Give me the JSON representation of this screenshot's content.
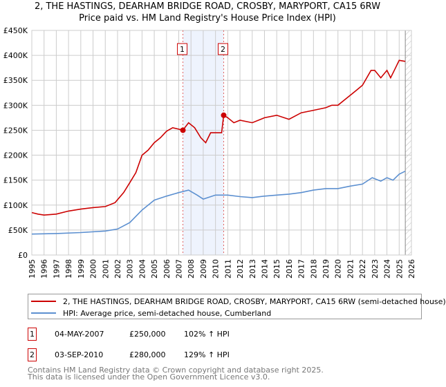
{
  "title_line1": "2, THE HASTINGS, DEARHAM BRIDGE ROAD, CROSBY, MARYPORT, CA15 6RW",
  "title_line2": "Price paid vs. HM Land Registry's House Price Index (HPI)",
  "legend": [
    {
      "label": "2, THE HASTINGS, DEARHAM BRIDGE ROAD, CROSBY, MARYPORT, CA15 6RW (semi-detached house)",
      "color": "#cc0000"
    },
    {
      "label": "HPI: Average price, semi-detached house, Cumberland",
      "color": "#5b8fd0"
    }
  ],
  "sales": [
    {
      "num": "1",
      "date": "04-MAY-2007",
      "price": "£250,000",
      "hpi": "102% ↑ HPI"
    },
    {
      "num": "2",
      "date": "03-SEP-2010",
      "price": "£280,000",
      "hpi": "129% ↑ HPI"
    }
  ],
  "footer_line1": "Contains HM Land Registry data © Crown copyright and database right 2025.",
  "footer_line2": "This data is licensed under the Open Government Licence v3.0.",
  "chart_data": {
    "type": "line",
    "xlim": [
      1995,
      2026
    ],
    "ylim": [
      0,
      450000
    ],
    "yticks": [
      0,
      50000,
      100000,
      150000,
      200000,
      250000,
      300000,
      350000,
      400000,
      450000
    ],
    "ytick_labels": [
      "£0",
      "£50K",
      "£100K",
      "£150K",
      "£200K",
      "£250K",
      "£300K",
      "£350K",
      "£400K",
      "£450K"
    ],
    "xticks": [
      1995,
      1996,
      1997,
      1998,
      1999,
      2000,
      2001,
      2002,
      2003,
      2004,
      2005,
      2006,
      2007,
      2008,
      2009,
      2010,
      2011,
      2012,
      2013,
      2014,
      2015,
      2016,
      2017,
      2018,
      2019,
      2020,
      2021,
      2022,
      2023,
      2024,
      2025,
      2026
    ],
    "grid": true,
    "shaded_between_sales": [
      2007.34,
      2010.67
    ],
    "future_hatch_from": 2025.5,
    "series": [
      {
        "name": "property",
        "color": "#cc0000",
        "x": [
          1995,
          1995.5,
          1996,
          1997,
          1998,
          1999,
          2000,
          2001,
          2001.8,
          2002.5,
          2003,
          2003.5,
          2004,
          2004.5,
          2005,
          2005.5,
          2006,
          2006.5,
          2007.34,
          2007.8,
          2008.3,
          2008.8,
          2009.2,
          2009.6,
          2010.5,
          2010.67,
          2011,
          2011.5,
          2012,
          2013,
          2014,
          2015,
          2016,
          2017,
          2018,
          2019,
          2019.5,
          2020,
          2021,
          2021.5,
          2022,
          2022.7,
          2023,
          2023.5,
          2024,
          2024.3,
          2024.7,
          2025,
          2025.5
        ],
        "y": [
          85000,
          82000,
          80000,
          82000,
          88000,
          92000,
          95000,
          97000,
          105000,
          125000,
          145000,
          165000,
          200000,
          210000,
          225000,
          235000,
          248000,
          255000,
          250000,
          265000,
          255000,
          235000,
          225000,
          245000,
          245000,
          280000,
          275000,
          265000,
          270000,
          265000,
          275000,
          280000,
          272000,
          285000,
          290000,
          295000,
          300000,
          300000,
          320000,
          330000,
          340000,
          370000,
          370000,
          355000,
          370000,
          355000,
          375000,
          390000,
          388000
        ]
      },
      {
        "name": "hpi",
        "color": "#5b8fd0",
        "x": [
          1995,
          1997,
          1999,
          2001,
          2002,
          2003,
          2004,
          2005,
          2006,
          2007,
          2007.8,
          2008.5,
          2009,
          2010,
          2011,
          2012,
          2013,
          2014,
          2015,
          2016,
          2017,
          2018,
          2019,
          2020,
          2021,
          2022,
          2022.8,
          2023.5,
          2024,
          2024.5,
          2025,
          2025.5
        ],
        "y": [
          42000,
          43000,
          45000,
          48000,
          52000,
          65000,
          90000,
          110000,
          118000,
          125000,
          130000,
          120000,
          112000,
          120000,
          120000,
          117000,
          115000,
          118000,
          120000,
          122000,
          125000,
          130000,
          133000,
          133000,
          138000,
          142000,
          155000,
          148000,
          155000,
          150000,
          162000,
          168000
        ]
      }
    ],
    "sale_points": [
      {
        "label": "1",
        "x": 2007.34,
        "y": 250000
      },
      {
        "label": "2",
        "x": 2010.67,
        "y": 280000
      }
    ]
  }
}
